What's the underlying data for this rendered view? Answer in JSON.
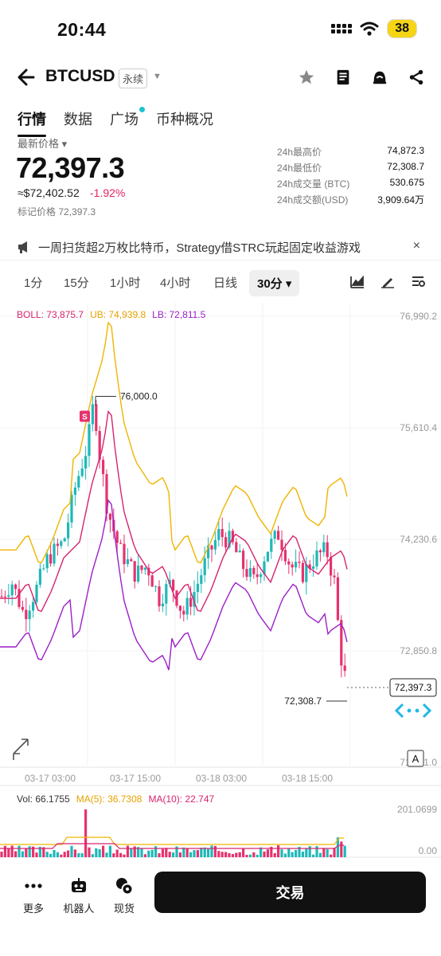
{
  "status": {
    "time": "20:44",
    "battery": "38"
  },
  "header": {
    "symbol": "BTCUSD",
    "contract_type": "永续",
    "icons": [
      "star-icon",
      "book-icon",
      "alert-icon",
      "share-icon"
    ]
  },
  "tabs": [
    {
      "label": "行情",
      "active": true
    },
    {
      "label": "数据",
      "active": false
    },
    {
      "label": "广场",
      "active": false,
      "dot": true
    },
    {
      "label": "币种概况",
      "active": false
    }
  ],
  "ticker": {
    "last_price_label": "最新价格",
    "last_price": "72,397.3",
    "usd_equiv": "≈$72,402.52",
    "change_pct": "-1.92%",
    "mark_price": "标记价格 72,397.3",
    "stats": [
      {
        "label": "24h最高价",
        "value": "74,872.3"
      },
      {
        "label": "24h最低价",
        "value": "72,308.7"
      },
      {
        "label": "24h成交量 (BTC)",
        "value": "530.675"
      },
      {
        "label": "24h成交额(USD)",
        "value": "3,909.64万"
      }
    ]
  },
  "news": {
    "text": "一周扫货超2万枚比特币，Strategy借STRC玩起固定收益游戏",
    "close": "×"
  },
  "intervals": [
    "1分",
    "15分",
    "1小时",
    "4小时",
    "日线"
  ],
  "active_interval": "30分",
  "colors": {
    "up": "#1fb8b8",
    "down": "#e6326e",
    "boll_mid": "#d6246f",
    "boll_ub": "#f0b400",
    "boll_lb": "#9b1fc8"
  },
  "chart_data": {
    "type": "candlestick",
    "indicator_legend": [
      {
        "label": "BOLL: 73,875.7",
        "color": "#d6246f"
      },
      {
        "label": "UB: 74,939.8",
        "color": "#e5a200"
      },
      {
        "label": "LB: 72,811.5",
        "color": "#9b1fc8"
      }
    ],
    "y_ticks": [
      "76,990.2",
      "75,610.4",
      "74,230.6",
      "72,850.8",
      "71,471.0"
    ],
    "ylim": [
      71471.0,
      76990.2
    ],
    "x_ticks": [
      "03-17 03:00",
      "03-17 15:00",
      "03-18 03:00",
      "03-18 15:00"
    ],
    "high_marker": "76,000.0",
    "low_marker": "72,308.7",
    "current_price_label": "72,397.3",
    "signal_marker": "S",
    "axis_button": "A",
    "volume_legend": [
      {
        "label": "Vol: 66.1755",
        "color": "#333333"
      },
      {
        "label": "MA(5): 36.7308",
        "color": "#e5a200"
      },
      {
        "label": "MA(10): 22.747",
        "color": "#d6246f"
      }
    ],
    "volume_ticks": [
      "201.0699",
      "0.00"
    ]
  },
  "bottom_nav": [
    {
      "label": "更多",
      "icon": "more-icon"
    },
    {
      "label": "机器人",
      "icon": "robot-icon"
    },
    {
      "label": "现货",
      "icon": "spot-icon"
    }
  ],
  "trade_button": "交易"
}
